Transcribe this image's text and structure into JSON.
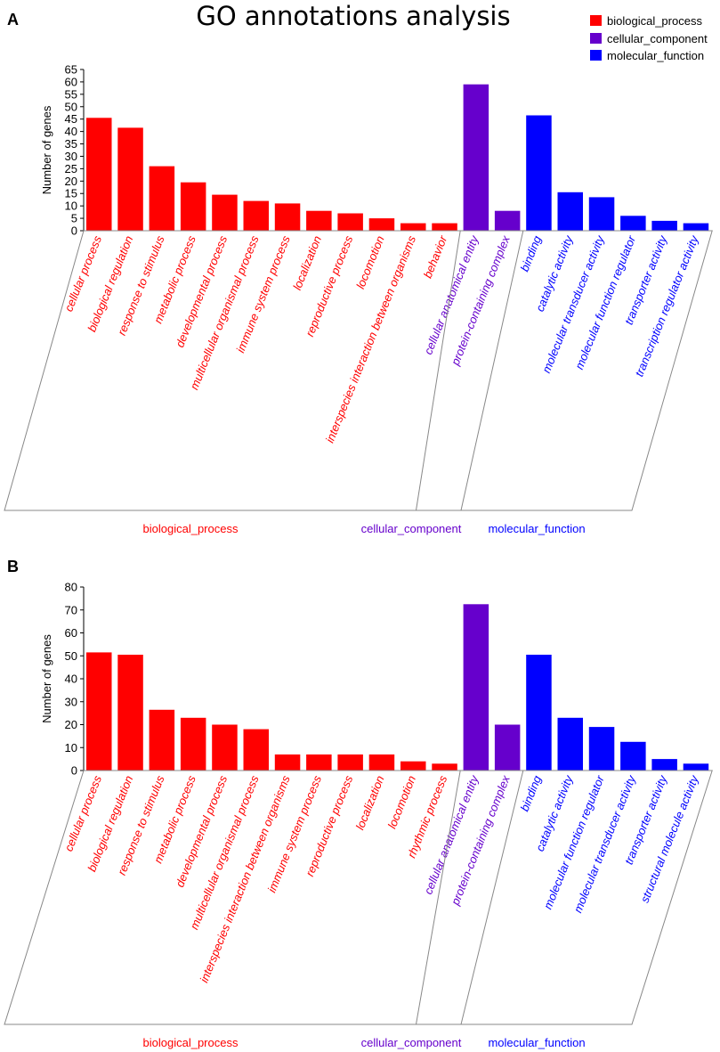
{
  "title": "GO annotations analysis",
  "legend": {
    "position": "top-right",
    "items": [
      {
        "label": "biological_process",
        "color": "#ff0000"
      },
      {
        "label": "cellular_component",
        "color": "#6600cc"
      },
      {
        "label": "molecular_function",
        "color": "#0000ff"
      }
    ]
  },
  "chart_data": [
    {
      "type": "bar",
      "panel_label": "A",
      "ylabel": "Number of genes",
      "ylim": [
        0,
        65
      ],
      "yticks": [
        0,
        5,
        10,
        15,
        20,
        25,
        30,
        35,
        40,
        45,
        50,
        55,
        60,
        65
      ],
      "categories": [
        "cellular process",
        "biological regulation",
        "response to stimulus",
        "metabolic process",
        "developmental process",
        "multicellular organismal process",
        "immune system process",
        "localization",
        "reproductive process",
        "locomotion",
        "interspecies interaction between organisms",
        "behavior",
        "cellular anatomical entity",
        "protein-containing complex",
        "binding",
        "catalytic activity",
        "molecular transducer activity",
        "molecular function regulator",
        "transporter activity",
        "transcription regulator activity"
      ],
      "values": [
        45.5,
        41.5,
        26,
        19.5,
        14.5,
        12,
        11,
        8,
        7,
        5,
        3,
        3,
        59,
        8,
        46.5,
        15.5,
        13.5,
        6,
        4,
        3
      ],
      "groups": [
        "biological_process",
        "biological_process",
        "biological_process",
        "biological_process",
        "biological_process",
        "biological_process",
        "biological_process",
        "biological_process",
        "biological_process",
        "biological_process",
        "biological_process",
        "biological_process",
        "cellular_component",
        "cellular_component",
        "molecular_function",
        "molecular_function",
        "molecular_function",
        "molecular_function",
        "molecular_function",
        "molecular_function"
      ],
      "group_labels": [
        "biological_process",
        "cellular_component",
        "molecular_function"
      ]
    },
    {
      "type": "bar",
      "panel_label": "B",
      "ylabel": "Number of genes",
      "ylim": [
        0,
        80
      ],
      "yticks": [
        0,
        10,
        20,
        30,
        40,
        50,
        60,
        70,
        80
      ],
      "categories": [
        "cellular process",
        "biological regulation",
        "response to stimulus",
        "metabolic process",
        "developmental process",
        "multicellular organismal process",
        "interspecies interaction between organisms",
        "immune system process",
        "reproductive process",
        "localization",
        "locomotion",
        "rhythmic process",
        "cellular anatomical entity",
        "protein-containing complex",
        "binding",
        "catalytic activity",
        "molecular function regulator",
        "molecular transducer activity",
        "transporter activity",
        "structural molecule activity"
      ],
      "values": [
        51.5,
        50.5,
        26.5,
        23,
        20,
        18,
        7,
        7,
        7,
        7,
        4,
        3,
        72.5,
        20,
        50.5,
        23,
        19,
        12.5,
        5,
        3
      ],
      "groups": [
        "biological_process",
        "biological_process",
        "biological_process",
        "biological_process",
        "biological_process",
        "biological_process",
        "biological_process",
        "biological_process",
        "biological_process",
        "biological_process",
        "biological_process",
        "biological_process",
        "cellular_component",
        "cellular_component",
        "molecular_function",
        "molecular_function",
        "molecular_function",
        "molecular_function",
        "molecular_function",
        "molecular_function"
      ],
      "group_labels": [
        "biological_process",
        "cellular_component",
        "molecular_function"
      ]
    }
  ]
}
